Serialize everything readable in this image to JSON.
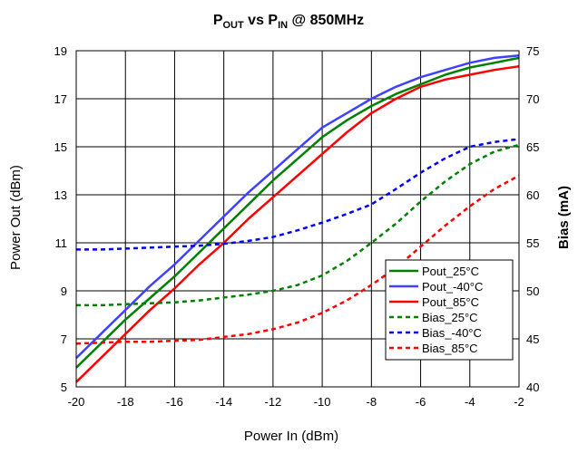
{
  "chart_data": {
    "type": "line",
    "title": {
      "main": "P",
      "sub1": "OUT",
      "mid": " vs P",
      "sub2": "IN",
      "tail": " @ 850MHz"
    },
    "xlabel": "Power In (dBm)",
    "ylabel": "Power Out (dBm)",
    "y2label": "Bias (mA)",
    "xlim": [
      -20,
      -2
    ],
    "ylim": [
      5,
      19
    ],
    "y2lim": [
      40,
      75
    ],
    "xticks": [
      -20,
      -18,
      -16,
      -14,
      -12,
      -10,
      -8,
      -6,
      -4,
      -2
    ],
    "yticks": [
      5,
      7,
      9,
      11,
      13,
      15,
      17,
      19
    ],
    "y2ticks": [
      40,
      45,
      50,
      55,
      60,
      65,
      70,
      75
    ],
    "grid": true,
    "legend_position": "bottom-right",
    "x": [
      -20,
      -19,
      -18,
      -17,
      -16,
      -15,
      -14,
      -13,
      -12,
      -11,
      -10,
      -9,
      -8,
      -7,
      -6,
      -5,
      -4,
      -3,
      -2
    ],
    "series": [
      {
        "name": "Pout_25°C",
        "axis": "left",
        "color": "#008000",
        "dash": "solid",
        "values": [
          5.8,
          6.8,
          7.8,
          8.7,
          9.6,
          10.6,
          11.6,
          12.6,
          13.6,
          14.5,
          15.4,
          16.1,
          16.7,
          17.2,
          17.6,
          18.0,
          18.3,
          18.5,
          18.7
        ]
      },
      {
        "name": "Pout_-40°C",
        "axis": "left",
        "color": "#4040ff",
        "dash": "solid",
        "values": [
          6.2,
          7.2,
          8.2,
          9.2,
          10.1,
          11.1,
          12.1,
          13.1,
          14.0,
          14.9,
          15.8,
          16.4,
          17.0,
          17.5,
          17.9,
          18.2,
          18.5,
          18.7,
          18.8
        ]
      },
      {
        "name": "Pout_85°C",
        "axis": "left",
        "color": "#ff0000",
        "dash": "solid",
        "values": [
          5.2,
          6.2,
          7.2,
          8.2,
          9.1,
          10.1,
          11.0,
          12.0,
          12.9,
          13.8,
          14.7,
          15.6,
          16.4,
          17.0,
          17.5,
          17.8,
          18.0,
          18.2,
          18.35
        ]
      },
      {
        "name": "Bias_25°C",
        "axis": "right",
        "color": "#008000",
        "dash": "dashed",
        "values": [
          48.5,
          48.5,
          48.6,
          48.7,
          48.8,
          49.0,
          49.3,
          49.6,
          50.0,
          50.6,
          51.6,
          53.1,
          55.0,
          57.0,
          59.3,
          61.4,
          63.2,
          64.5,
          65.2
        ]
      },
      {
        "name": "Bias_-40°C",
        "axis": "right",
        "color": "#0000ff",
        "dash": "dashed",
        "values": [
          54.3,
          54.3,
          54.4,
          54.5,
          54.6,
          54.7,
          54.9,
          55.2,
          55.6,
          56.3,
          57.1,
          58.0,
          59.0,
          60.6,
          62.3,
          63.8,
          65.0,
          65.5,
          65.8
        ]
      },
      {
        "name": "Bias_85°C",
        "axis": "right",
        "color": "#ff0000",
        "dash": "dashed",
        "values": [
          44.5,
          44.6,
          44.7,
          44.7,
          44.8,
          44.9,
          45.2,
          45.5,
          46.0,
          46.7,
          47.7,
          49.0,
          50.6,
          52.4,
          54.6,
          56.8,
          58.8,
          60.6,
          62.0
        ]
      }
    ]
  }
}
